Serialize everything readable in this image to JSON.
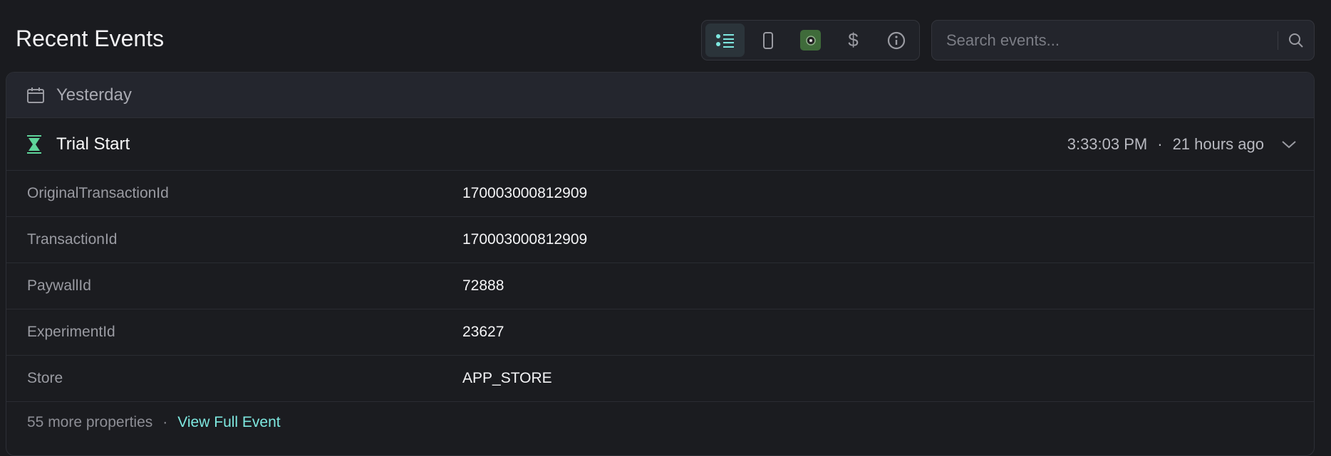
{
  "header": {
    "title": "Recent Events"
  },
  "toolbar": {
    "buttons": [
      {
        "icon": "list-icon",
        "active": true
      },
      {
        "icon": "phone-icon"
      },
      {
        "icon": "user-avatar-icon"
      },
      {
        "icon": "dollar-icon",
        "label": "$"
      },
      {
        "icon": "info-icon"
      }
    ]
  },
  "search": {
    "placeholder": "Search events..."
  },
  "group": {
    "label": "Yesterday"
  },
  "event": {
    "name": "Trial Start",
    "time": "3:33:03 PM",
    "separator": "·",
    "relative": "21 hours ago",
    "properties": [
      {
        "key": "OriginalTransactionId",
        "value": "170003000812909"
      },
      {
        "key": "TransactionId",
        "value": "170003000812909"
      },
      {
        "key": "PaywallId",
        "value": "72888"
      },
      {
        "key": "ExperimentId",
        "value": "23627"
      },
      {
        "key": "Store",
        "value": "APP_STORE"
      }
    ],
    "more": "55 more properties",
    "view_full": "View Full Event"
  },
  "colors": {
    "accent": "#7ee8e0",
    "trial_icon": "#5fd49a",
    "background": "#1a1b1f"
  }
}
